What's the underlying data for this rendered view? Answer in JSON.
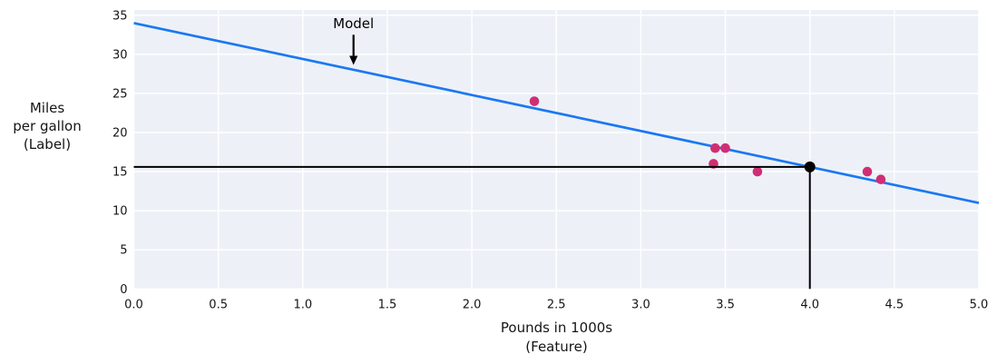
{
  "chart_data": {
    "type": "scatter",
    "title": "",
    "xlabel": "Pounds in 1000s\n(Feature)",
    "ylabel": "Miles\nper gallon\n(Label)",
    "xlim": [
      0.0,
      5.0
    ],
    "ylim": [
      0.0,
      35.67
    ],
    "grid": true,
    "legend": "none",
    "x_ticks": [
      0.0,
      0.5,
      1.0,
      1.5,
      2.0,
      2.5,
      3.0,
      3.5,
      4.0,
      4.5,
      5.0
    ],
    "x_tick_labels": [
      "0.0",
      "0.5",
      "1.0",
      "1.5",
      "2.0",
      "2.5",
      "3.0",
      "3.5",
      "4.0",
      "4.5",
      "5.0"
    ],
    "y_ticks": [
      0,
      5,
      10,
      15,
      20,
      25,
      30,
      35
    ],
    "y_tick_labels": [
      "0",
      "5",
      "10",
      "15",
      "20",
      "25",
      "30",
      "35"
    ],
    "series": [
      {
        "name": "examples",
        "type": "scatter",
        "color": "#d02e74",
        "marker_radius": 5.3,
        "points": [
          [
            2.37,
            24
          ],
          [
            3.43,
            16
          ],
          [
            3.44,
            18
          ],
          [
            3.5,
            18
          ],
          [
            3.69,
            15
          ],
          [
            4.34,
            15
          ],
          [
            4.42,
            14
          ]
        ]
      },
      {
        "name": "model-line",
        "type": "line",
        "color": "#1b78f2",
        "width": 2.7,
        "x": [
          0.0,
          5.0
        ],
        "y": [
          34.0,
          11.0
        ]
      }
    ],
    "prediction": {
      "x": 4.0,
      "y": 15.6,
      "color": "#000000",
      "dot_radius": 6,
      "line_width": 2
    },
    "annotation": {
      "text": "Model",
      "x": 1.3,
      "text_y": 33.9,
      "arrow_tail_y": 32.5,
      "arrow_tip_y": 28.65,
      "color": "#000000",
      "font_size": 15
    },
    "colors": {
      "plot_background": "#edf1f7",
      "gridline": "#ffffff",
      "tick_text": "#151515",
      "figure_background": "#ffffff"
    }
  }
}
